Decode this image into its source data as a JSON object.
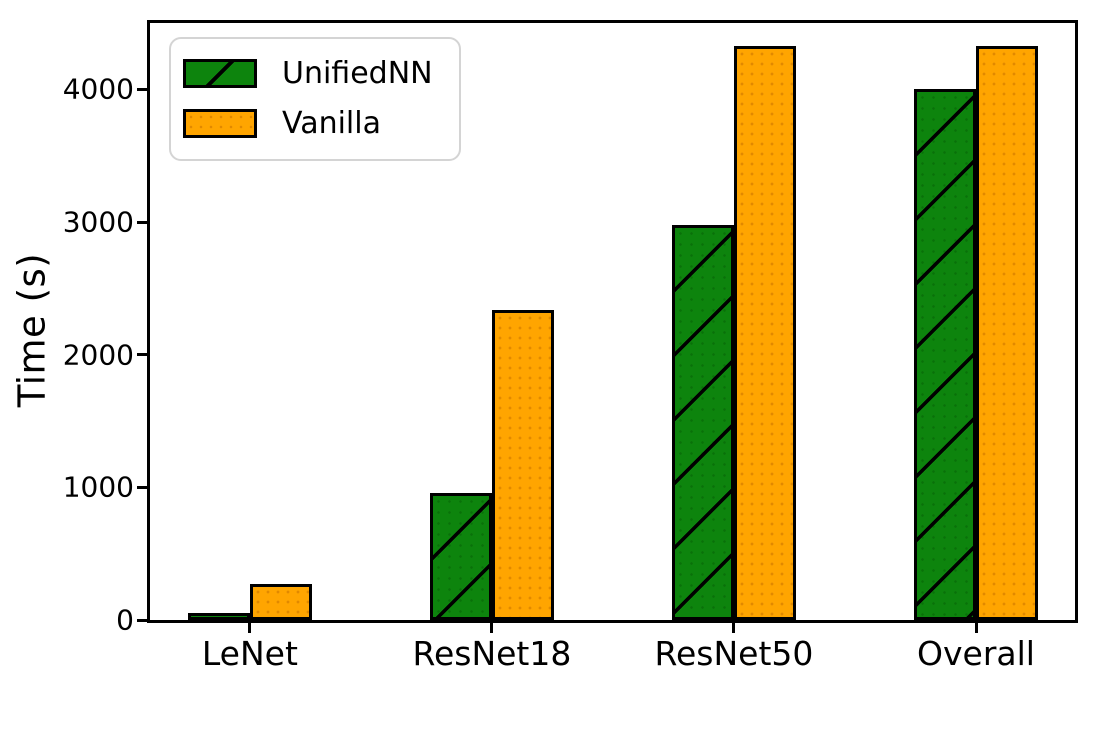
{
  "chart_data": {
    "type": "bar",
    "title": "",
    "xlabel": "",
    "ylabel": "Time (s)",
    "categories": [
      "LeNet",
      "ResNet18",
      "ResNet50",
      "Overall"
    ],
    "series": [
      {
        "name": "UnifiedNN",
        "color": "#0d840d",
        "hatch": "/",
        "values": [
          55,
          960,
          2980,
          4000
        ]
      },
      {
        "name": "Vanilla",
        "color": "#ffa500",
        "hatch": ".",
        "values": [
          270,
          2340,
          4330,
          4330
        ]
      }
    ],
    "yticks": [
      0,
      1000,
      2000,
      3000,
      4000
    ],
    "ylim": [
      0,
      4500
    ],
    "grid": false,
    "legend_position": "upper left",
    "bar_edge_color": "#000000"
  }
}
